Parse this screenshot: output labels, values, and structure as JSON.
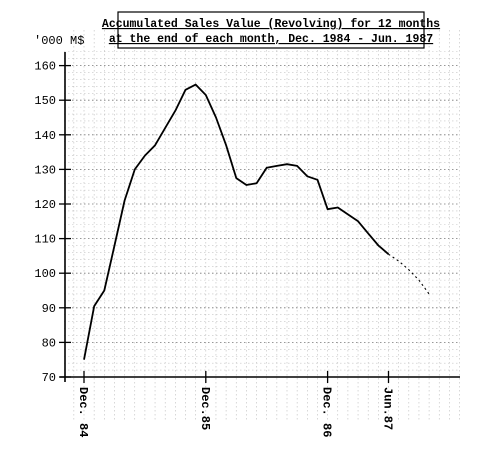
{
  "chart_data": {
    "type": "line",
    "title_lines": [
      "Accumulated Sales Value (Revolving) for 12 months",
      "at the end of each month, Dec. 1984 - Jun. 1987"
    ],
    "ylabel": "'000 M$",
    "xlabel": "",
    "ylim": [
      70,
      165
    ],
    "y_ticks": [
      70,
      80,
      90,
      100,
      110,
      120,
      130,
      140,
      150,
      160
    ],
    "x_range": [
      0,
      34
    ],
    "x_ticks": [
      {
        "x": 0,
        "label": "Dec. 84"
      },
      {
        "x": 12,
        "label": "Dec.85"
      },
      {
        "x": 24,
        "label": "Dec. 86"
      },
      {
        "x": 30,
        "label": "Jun.87"
      }
    ],
    "grid": true,
    "series": [
      {
        "style": "solid",
        "x": [
          0,
          1,
          2,
          3,
          4,
          5,
          6,
          7,
          8,
          9,
          10,
          11,
          12,
          13,
          14,
          15,
          16,
          17,
          18,
          19,
          20,
          21,
          22,
          23,
          24,
          25,
          26,
          27,
          28,
          29,
          30
        ],
        "y": [
          75,
          90.5,
          95,
          108,
          121,
          130,
          134,
          137,
          142,
          147,
          153,
          154.5,
          151.5,
          145,
          137,
          127.5,
          125.5,
          126,
          130.5,
          131,
          131.5,
          131,
          128,
          127,
          118.5,
          119,
          117,
          115,
          111.5,
          108,
          105.5
        ]
      },
      {
        "style": "dashed",
        "x": [
          30,
          31,
          32,
          33,
          34
        ],
        "y": [
          105.5,
          103.5,
          101,
          98,
          94
        ]
      }
    ]
  }
}
